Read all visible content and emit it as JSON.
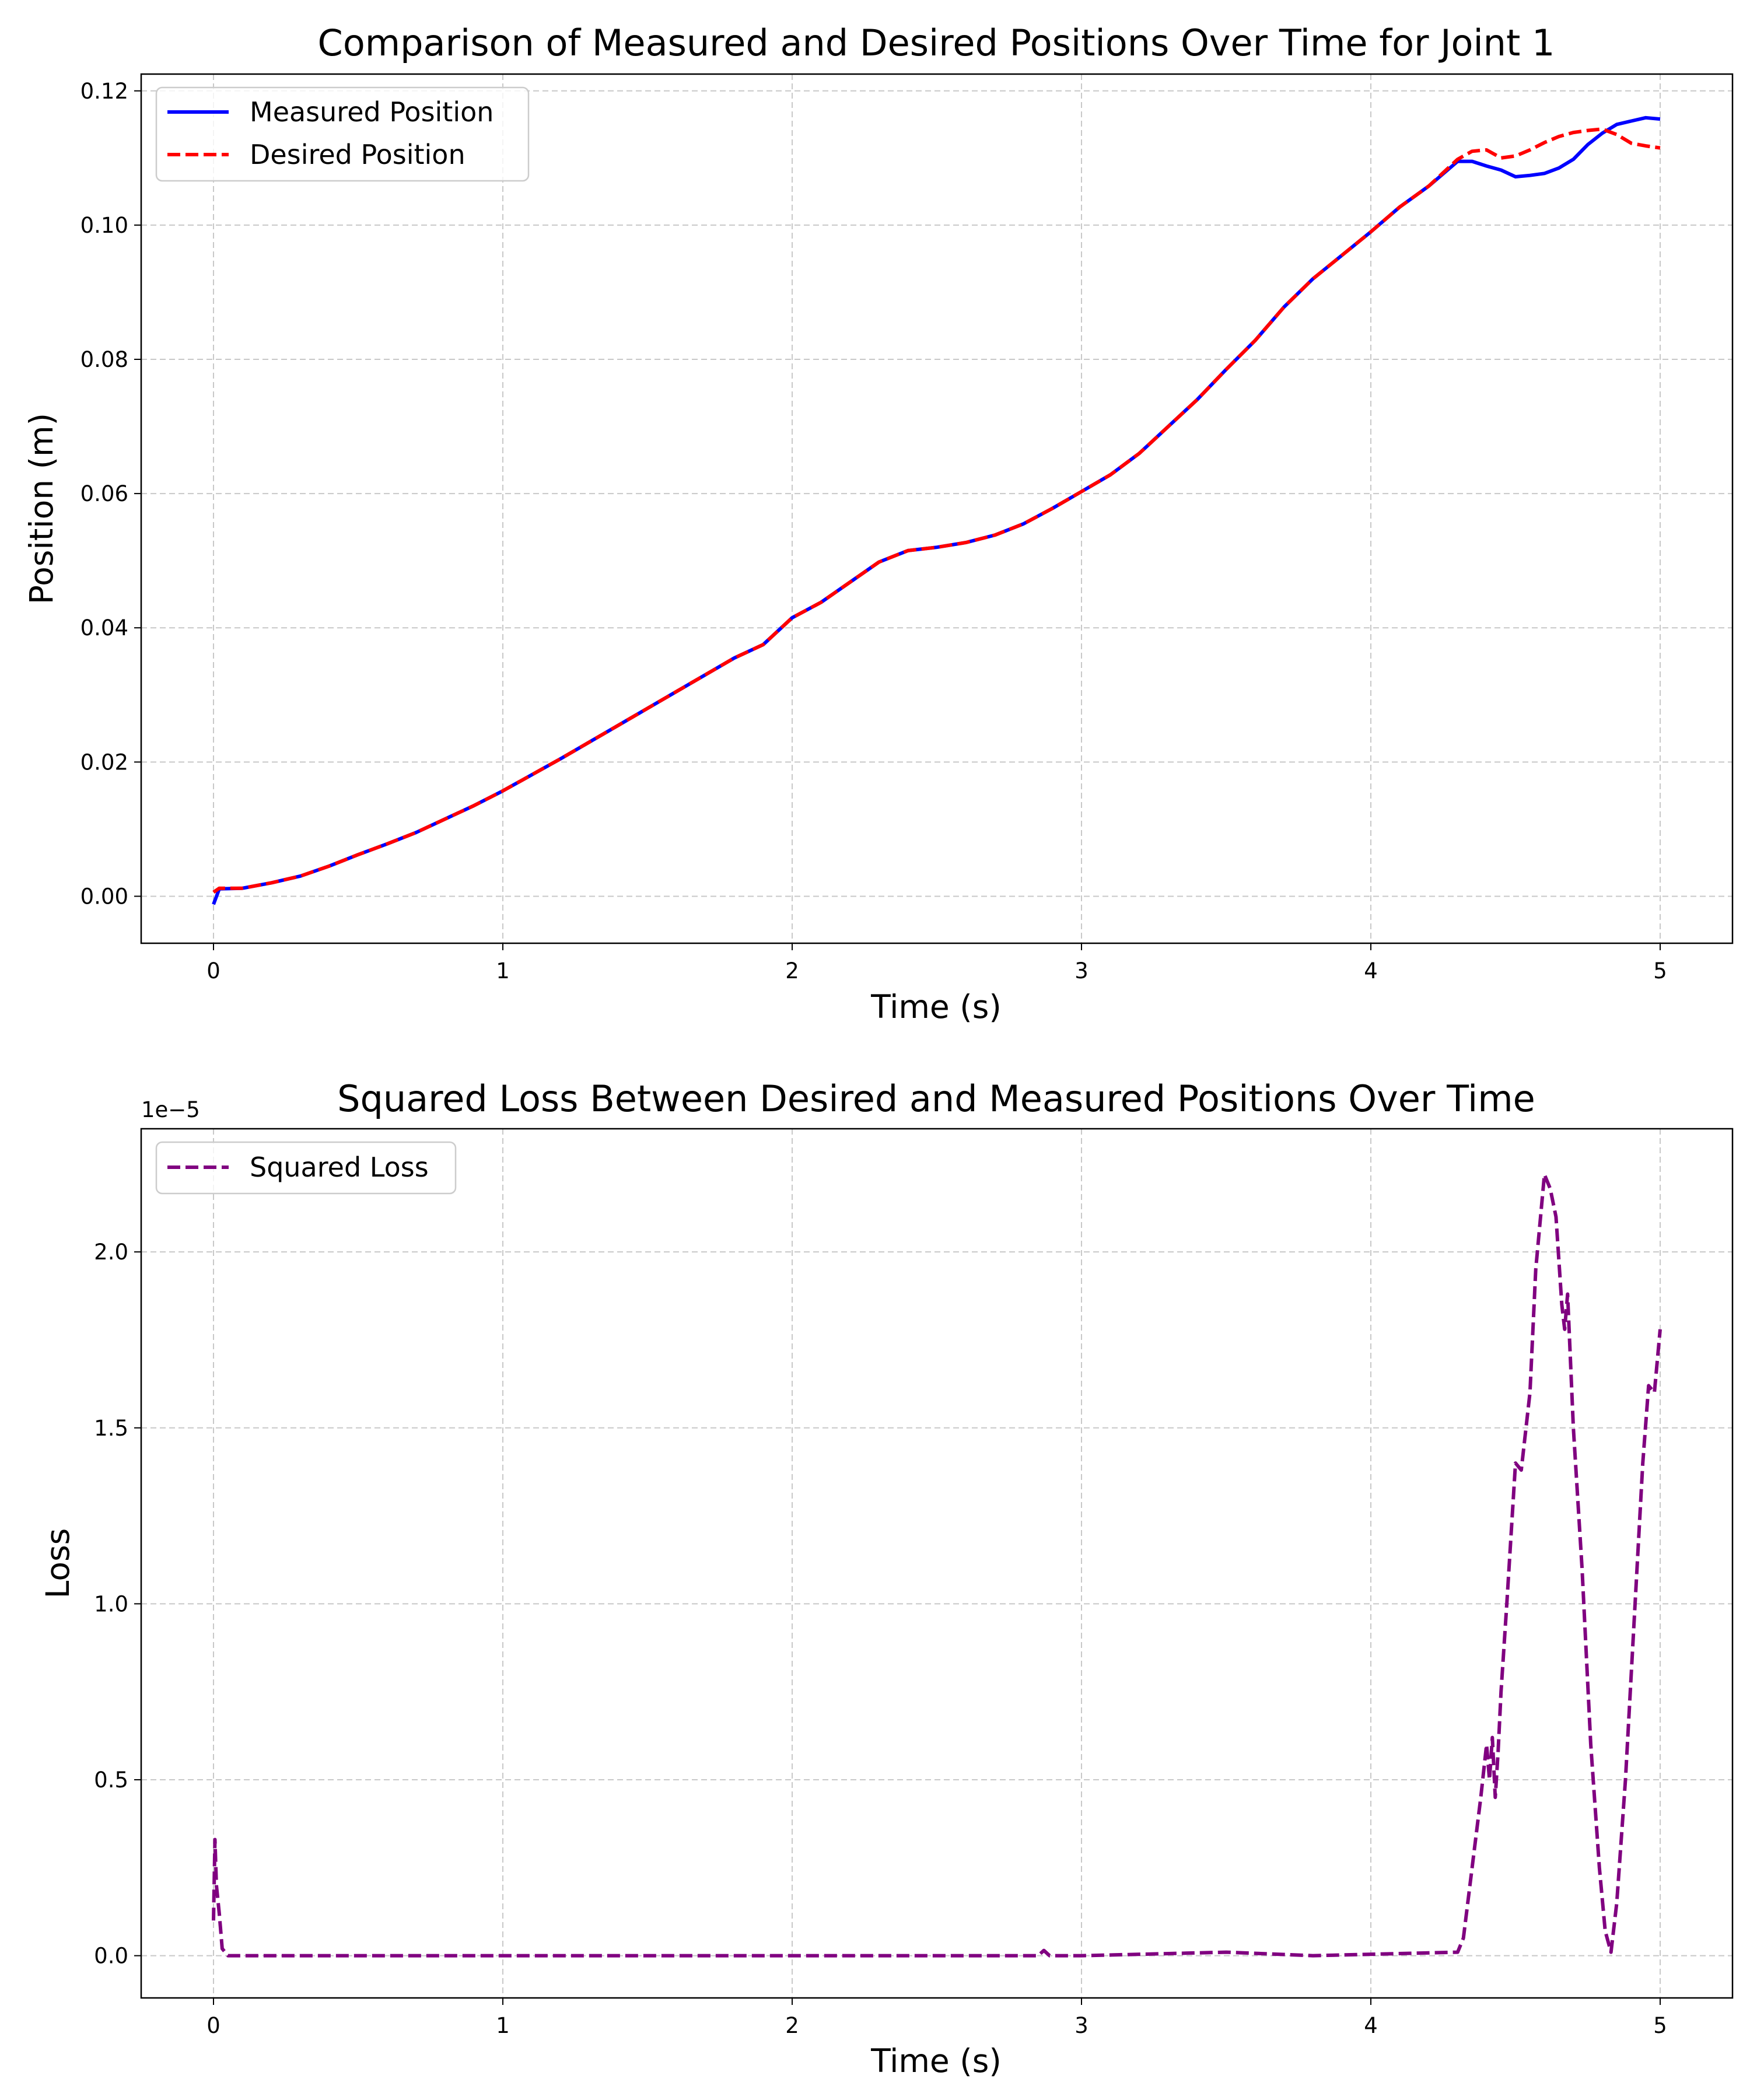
{
  "chart_data": [
    {
      "type": "line",
      "title": "Comparison of Measured and Desired Positions Over Time for Joint 1",
      "xlabel": "Time (s)",
      "ylabel": "Position (m)",
      "xlim": [
        -0.25,
        5.25
      ],
      "ylim": [
        -0.007,
        0.1225
      ],
      "xticks": [
        0,
        1,
        2,
        3,
        4,
        5
      ],
      "xtick_labels": [
        "0",
        "1",
        "2",
        "3",
        "4",
        "5"
      ],
      "yticks": [
        0.0,
        0.02,
        0.04,
        0.06,
        0.08,
        0.1,
        0.12
      ],
      "ytick_labels": [
        "0.00",
        "0.02",
        "0.04",
        "0.06",
        "0.08",
        "0.10",
        "0.12"
      ],
      "grid": true,
      "legend_position": "top-left",
      "series": [
        {
          "name": "Measured Position",
          "color": "#0000ff",
          "style": "solid",
          "x": [
            0,
            0.02,
            0.1,
            0.2,
            0.3,
            0.4,
            0.5,
            0.6,
            0.7,
            0.8,
            0.9,
            1.0,
            1.2,
            1.4,
            1.6,
            1.8,
            1.9,
            2.0,
            2.1,
            2.2,
            2.3,
            2.4,
            2.5,
            2.6,
            2.7,
            2.8,
            2.9,
            3.0,
            3.1,
            3.2,
            3.3,
            3.4,
            3.5,
            3.6,
            3.7,
            3.8,
            3.9,
            4.0,
            4.1,
            4.2,
            4.3,
            4.35,
            4.4,
            4.45,
            4.5,
            4.55,
            4.6,
            4.65,
            4.7,
            4.75,
            4.8,
            4.85,
            4.9,
            4.95,
            5.0
          ],
          "y": [
            -0.0012,
            0.0011,
            0.0012,
            0.002,
            0.003,
            0.0045,
            0.0062,
            0.0078,
            0.0095,
            0.0115,
            0.0135,
            0.0157,
            0.0205,
            0.0255,
            0.0305,
            0.0355,
            0.0375,
            0.0415,
            0.0438,
            0.0468,
            0.0498,
            0.0515,
            0.052,
            0.0527,
            0.0538,
            0.0555,
            0.0578,
            0.0603,
            0.0628,
            0.066,
            0.07,
            0.074,
            0.0785,
            0.0828,
            0.0878,
            0.092,
            0.0955,
            0.099,
            0.1027,
            0.1058,
            0.1095,
            0.1095,
            0.1088,
            0.1082,
            0.1072,
            0.1074,
            0.1077,
            0.1085,
            0.1098,
            0.112,
            0.1137,
            0.115,
            0.1155,
            0.116,
            0.1158
          ]
        },
        {
          "name": "Desired Position",
          "color": "#ff0000",
          "style": "dashed",
          "x": [
            0,
            0.02,
            0.1,
            0.2,
            0.3,
            0.4,
            0.5,
            0.6,
            0.7,
            0.8,
            0.9,
            1.0,
            1.2,
            1.4,
            1.6,
            1.8,
            1.9,
            2.0,
            2.1,
            2.2,
            2.3,
            2.4,
            2.5,
            2.6,
            2.7,
            2.8,
            2.9,
            3.0,
            3.1,
            3.2,
            3.3,
            3.4,
            3.5,
            3.6,
            3.7,
            3.8,
            3.9,
            4.0,
            4.1,
            4.2,
            4.3,
            4.35,
            4.4,
            4.45,
            4.5,
            4.55,
            4.6,
            4.65,
            4.7,
            4.75,
            4.8,
            4.85,
            4.9,
            4.95,
            5.0
          ],
          "y": [
            0.0006,
            0.0012,
            0.0012,
            0.002,
            0.003,
            0.0045,
            0.0062,
            0.0078,
            0.0095,
            0.0115,
            0.0135,
            0.0157,
            0.0205,
            0.0255,
            0.0305,
            0.0355,
            0.0375,
            0.0415,
            0.0438,
            0.0468,
            0.0498,
            0.0515,
            0.052,
            0.0527,
            0.0538,
            0.0555,
            0.0578,
            0.0603,
            0.0628,
            0.066,
            0.07,
            0.074,
            0.0785,
            0.0828,
            0.0878,
            0.092,
            0.0955,
            0.099,
            0.1027,
            0.1058,
            0.1098,
            0.111,
            0.1112,
            0.11,
            0.1103,
            0.1112,
            0.1123,
            0.1132,
            0.1138,
            0.1141,
            0.1143,
            0.1135,
            0.1122,
            0.1118,
            0.1115
          ]
        }
      ]
    },
    {
      "type": "line",
      "title": "Squared Loss Between Desired and Measured Positions Over Time",
      "xlabel": "Time (s)",
      "ylabel": "Loss",
      "offset_label": "1e−5",
      "xlim": [
        -0.25,
        5.25
      ],
      "ylim": [
        -0.12,
        2.35
      ],
      "xticks": [
        0,
        1,
        2,
        3,
        4,
        5
      ],
      "xtick_labels": [
        "0",
        "1",
        "2",
        "3",
        "4",
        "5"
      ],
      "yticks": [
        0.0,
        0.5,
        1.0,
        1.5,
        2.0
      ],
      "ytick_labels": [
        "0.0",
        "0.5",
        "1.0",
        "1.5",
        "2.0"
      ],
      "grid": true,
      "legend_position": "top-left",
      "series": [
        {
          "name": "Squared Loss",
          "color": "#800080",
          "style": "dashed",
          "x": [
            0,
            0.005,
            0.01,
            0.02,
            0.03,
            0.05,
            0.1,
            1.0,
            2.0,
            2.85,
            2.87,
            2.89,
            3.0,
            3.5,
            3.8,
            4.3,
            4.32,
            4.35,
            4.38,
            4.4,
            4.41,
            4.42,
            4.43,
            4.44,
            4.45,
            4.47,
            4.5,
            4.52,
            4.55,
            4.57,
            4.6,
            4.62,
            4.64,
            4.66,
            4.67,
            4.68,
            4.7,
            4.73,
            4.76,
            4.79,
            4.81,
            4.83,
            4.85,
            4.88,
            4.9,
            4.92,
            4.94,
            4.96,
            4.98,
            5.0
          ],
          "y": [
            0.1,
            0.33,
            0.2,
            0.12,
            0.02,
            0.0,
            0.0,
            0.0,
            0.0,
            0.0,
            0.015,
            0.0,
            0.0,
            0.01,
            0.0,
            0.01,
            0.05,
            0.25,
            0.45,
            0.6,
            0.5,
            0.62,
            0.45,
            0.58,
            0.75,
            1.0,
            1.4,
            1.38,
            1.6,
            1.95,
            2.22,
            2.18,
            2.1,
            1.85,
            1.78,
            1.88,
            1.5,
            1.1,
            0.6,
            0.25,
            0.07,
            0.01,
            0.15,
            0.5,
            0.8,
            1.1,
            1.4,
            1.62,
            1.6,
            1.78
          ]
        }
      ]
    }
  ]
}
